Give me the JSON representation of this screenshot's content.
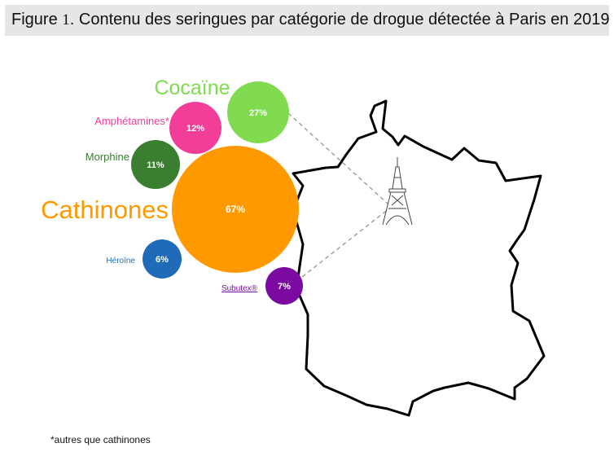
{
  "title": {
    "prefix": "Figure",
    "number": "1",
    "text": ". Contenu des seringues par catégorie de drogue détectée à Paris en 2019"
  },
  "chart_data": {
    "type": "bubble",
    "unit": "%",
    "series": [
      {
        "name": "Cathinones",
        "value": 67,
        "color": "#FF9900"
      },
      {
        "name": "Cocaïne",
        "value": 27,
        "color": "#80DB50"
      },
      {
        "name": "Amphétamines*",
        "value": 12,
        "color": "#F23E98"
      },
      {
        "name": "Morphine",
        "value": 11,
        "color": "#3A7E30"
      },
      {
        "name": "Subutex®",
        "value": 7,
        "color": "#7A0AA0"
      },
      {
        "name": "Héroïne",
        "value": 6,
        "color": "#1F6BB8"
      }
    ]
  },
  "footnote": "*autres que cathinones"
}
